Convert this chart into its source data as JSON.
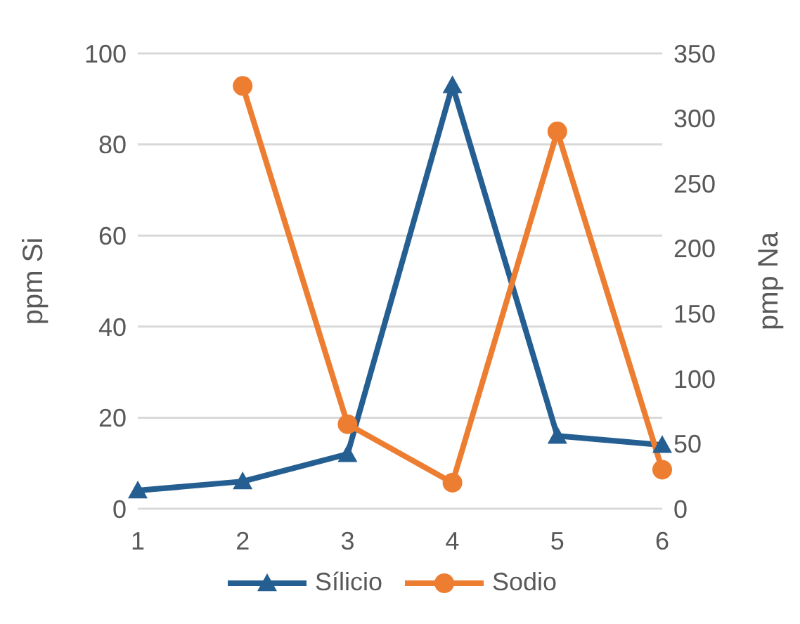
{
  "chart_data": {
    "type": "line",
    "categories": [
      "1",
      "2",
      "3",
      "4",
      "5",
      "6"
    ],
    "ylabel": "ppm Si",
    "y2label": "pmp Na",
    "ylim": [
      0,
      100
    ],
    "yticks": [
      0,
      20,
      40,
      60,
      80,
      100
    ],
    "y2lim": [
      0,
      350
    ],
    "y2ticks": [
      0,
      50,
      100,
      150,
      200,
      250,
      300,
      350
    ],
    "grid": "y",
    "legend": "bottom",
    "series": [
      {
        "name": "Sílicio",
        "color": "#255e91",
        "marker": "triangle",
        "values": [
          4,
          6,
          12,
          93,
          16,
          14
        ]
      },
      {
        "name": "Sodio",
        "color": "#ed7d31",
        "marker": "circle",
        "axis": "y2",
        "values": [
          null,
          325,
          65,
          20,
          290,
          30
        ]
      }
    ]
  }
}
